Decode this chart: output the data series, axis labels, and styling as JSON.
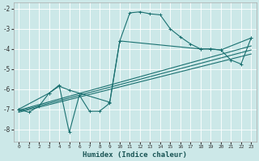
{
  "xlabel": "Humidex (Indice chaleur)",
  "bg_color": "#cce8e8",
  "grid_color": "#b8d8d8",
  "line_color": "#1a7070",
  "xlim": [
    -0.5,
    23.5
  ],
  "ylim": [
    -8.6,
    -1.7
  ],
  "xticks": [
    0,
    1,
    2,
    3,
    4,
    5,
    6,
    7,
    8,
    9,
    10,
    11,
    12,
    13,
    14,
    15,
    16,
    17,
    18,
    19,
    20,
    21,
    22,
    23
  ],
  "yticks": [
    -8,
    -7,
    -6,
    -5,
    -4,
    -3,
    -2
  ],
  "main_line_x": [
    0,
    1,
    2,
    3,
    4,
    5,
    6,
    7,
    8,
    9,
    10,
    11,
    12,
    13,
    14,
    15,
    16,
    17,
    18,
    19,
    20,
    21,
    22,
    23
  ],
  "main_line_y": [
    -7.0,
    -7.15,
    -6.85,
    -6.2,
    -5.8,
    -8.15,
    -6.3,
    -7.1,
    -7.1,
    -6.7,
    -3.6,
    -2.2,
    -2.15,
    -2.25,
    -2.3,
    -3.0,
    -3.4,
    -3.75,
    -4.0,
    -4.0,
    -4.05,
    -4.55,
    -4.75,
    -3.45
  ],
  "line_trend1_x": [
    0,
    23
  ],
  "line_trend1_y": [
    -7.05,
    -3.85
  ],
  "line_trend2_x": [
    0,
    23
  ],
  "line_trend2_y": [
    -7.1,
    -4.05
  ],
  "line_trend3_x": [
    0,
    23
  ],
  "line_trend3_y": [
    -7.15,
    -4.25
  ],
  "extra_line_x": [
    0,
    3,
    4,
    5,
    9,
    10,
    18,
    19,
    20,
    23
  ],
  "extra_line_y": [
    -7.0,
    -6.2,
    -5.85,
    -6.05,
    -6.65,
    -3.6,
    -4.0,
    -4.0,
    -4.05,
    -3.45
  ]
}
